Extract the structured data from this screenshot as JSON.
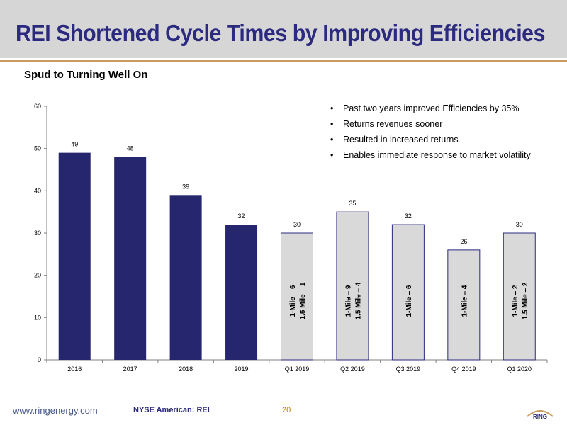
{
  "header": {
    "title": "REI Shortened Cycle Times by Improving Efficiencies"
  },
  "subtitle": "Spud to Turning Well On",
  "bullets": [
    "Past two years improved Efficiencies by 35%",
    "Returns revenues sooner",
    "Resulted in increased returns",
    "Enables immediate response to market volatility"
  ],
  "bullet_glyph": "•",
  "footer": {
    "url": "www.ringenergy.com",
    "ticker": "NYSE American: REI",
    "page": "20",
    "logo": "RING"
  },
  "colors": {
    "dark_bar": "#26266e",
    "light_bar": "#d9d9d9",
    "light_bar_border": "#2b2a7f",
    "title": "#2b2a7f",
    "accent_rule": "#c89b5c"
  },
  "chart_data": {
    "type": "bar",
    "categories": [
      "2016",
      "2017",
      "2018",
      "2019",
      "Q1 2019",
      "Q2 2019",
      "Q3 2019",
      "Q4 2019",
      "Q1 2020"
    ],
    "values": [
      49,
      48,
      39,
      32,
      30,
      35,
      32,
      26,
      30
    ],
    "bar_styles": [
      "dark",
      "dark",
      "dark",
      "dark",
      "light",
      "light",
      "light",
      "light",
      "light"
    ],
    "bar_annotations": [
      [],
      [],
      [],
      [],
      [
        "1-Mile – 6",
        "1.5 Mile – 1"
      ],
      [
        "1-Mile – 9",
        "1.5 Mile – 4"
      ],
      [
        "1-Mile – 6"
      ],
      [
        "1-Mile – 4"
      ],
      [
        "1-Mile – 2",
        "1.5 Mile – 2"
      ]
    ],
    "yticks": [
      0,
      10,
      20,
      30,
      40,
      50,
      60
    ],
    "ylim": [
      0,
      60
    ],
    "grid": false,
    "title": "Spud to Turning Well On",
    "xlabel": "",
    "ylabel": ""
  }
}
